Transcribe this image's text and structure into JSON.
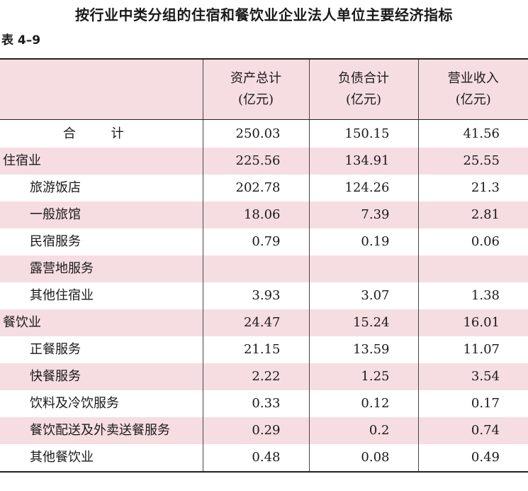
{
  "title": "按行业中类分组的住宿和餐饮业企业法人单位主要经济指标",
  "table_number": "表 4–9",
  "header": {
    "col1": [
      "资产总计",
      "(亿元)"
    ],
    "col2": [
      "负债合计",
      "(亿元)"
    ],
    "col3": [
      "营业收入",
      "(亿元)"
    ]
  },
  "rows": [
    {
      "label": "合  计",
      "assets": "250.03",
      "liabilities": "150.15",
      "revenue": "41.56"
    },
    {
      "label": "住宿业",
      "assets": "225.56",
      "liabilities": "134.91",
      "revenue": "25.55"
    },
    {
      "label": "旅游饭店",
      "assets": "202.78",
      "liabilities": "124.26",
      "revenue": "21.3"
    },
    {
      "label": "一般旅馆",
      "assets": "18.06",
      "liabilities": "7.39",
      "revenue": "2.81"
    },
    {
      "label": "民宿服务",
      "assets": "0.79",
      "liabilities": "0.19",
      "revenue": "0.06"
    },
    {
      "label": "露营地服务",
      "assets": "",
      "liabilities": "",
      "revenue": ""
    },
    {
      "label": "其他住宿业",
      "assets": "3.93",
      "liabilities": "3.07",
      "revenue": "1.38"
    },
    {
      "label": "餐饮业",
      "assets": "24.47",
      "liabilities": "15.24",
      "revenue": "16.01"
    },
    {
      "label": "正餐服务",
      "assets": "21.15",
      "liabilities": "13.59",
      "revenue": "11.07"
    },
    {
      "label": "快餐服务",
      "assets": "2.22",
      "liabilities": "1.25",
      "revenue": "3.54"
    },
    {
      "label": "饮料及冷饮服务",
      "assets": "0.33",
      "liabilities": "0.12",
      "revenue": "0.17"
    },
    {
      "label": "餐饮配送及外卖送餐服务",
      "assets": "0.29",
      "liabilities": "0.2",
      "revenue": "0.74"
    },
    {
      "label": "其他餐饮业",
      "assets": "0.48",
      "liabilities": "0.08",
      "revenue": "0.49"
    }
  ],
  "colors": {
    "header_bg": "#f6dde2",
    "stripe_bg": "#f6dde2",
    "rule": "#222222"
  }
}
